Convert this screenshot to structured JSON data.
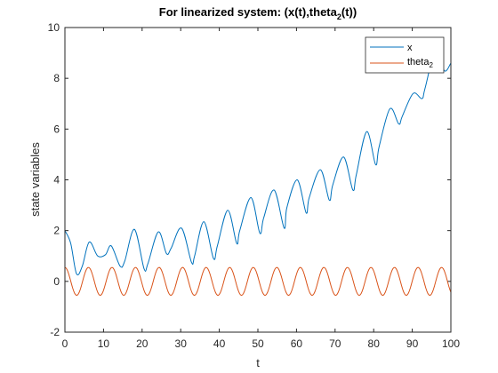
{
  "chart_data": {
    "type": "line",
    "title": "For linearized system: (x(t),theta",
    "title_sub": "2",
    "title_end": "(t))",
    "xlabel": "t",
    "ylabel": "state variables",
    "xlim": [
      0,
      100
    ],
    "ylim": [
      -2,
      10
    ],
    "xticks": [
      "0",
      "10",
      "20",
      "30",
      "40",
      "50",
      "60",
      "70",
      "80",
      "90",
      "100"
    ],
    "yticks": [
      "-2",
      "0",
      "2",
      "4",
      "6",
      "8",
      "10"
    ],
    "grid": false,
    "legend_position": "top-right",
    "series": [
      {
        "name": "x",
        "color": "#0072BD",
        "x": [
          0,
          1.5,
          3,
          4.5,
          6.3,
          8.5,
          10.5,
          12,
          14.3,
          15.5,
          18,
          20.5,
          21.5,
          24.2,
          26.3,
          27.5,
          30.2,
          32.8,
          33.6,
          36,
          38.5,
          39.5,
          42.2,
          44.5,
          45.3,
          48.2,
          50.5,
          51.5,
          54.2,
          56.8,
          57.5,
          60.2,
          62.5,
          63.3,
          66.2,
          68.5,
          69.4,
          72.2,
          74.6,
          75.5,
          78.2,
          80.5,
          81.4,
          84.2,
          86.5,
          87.4,
          90.2,
          92.5,
          93.3,
          96.2,
          98.3,
          100
        ],
        "y": [
          2.0,
          1.5,
          0.3,
          0.6,
          1.55,
          1.0,
          1.05,
          1.4,
          0.6,
          0.8,
          2.05,
          0.5,
          0.7,
          1.95,
          1.1,
          1.3,
          2.1,
          0.75,
          1.0,
          2.35,
          0.9,
          1.4,
          2.8,
          1.5,
          2.0,
          3.3,
          1.9,
          2.5,
          3.6,
          2.1,
          2.9,
          4.0,
          2.7,
          3.3,
          4.4,
          3.2,
          3.8,
          4.9,
          3.6,
          4.2,
          5.9,
          4.6,
          5.3,
          6.8,
          6.2,
          6.5,
          7.4,
          7.2,
          7.6,
          9.2,
          8.3,
          8.6
        ]
      },
      {
        "name": "theta",
        "name_sub": "2",
        "color": "#D95319",
        "amplitude": 0.55,
        "period": 6.1,
        "phase": 1.5708
      }
    ]
  }
}
